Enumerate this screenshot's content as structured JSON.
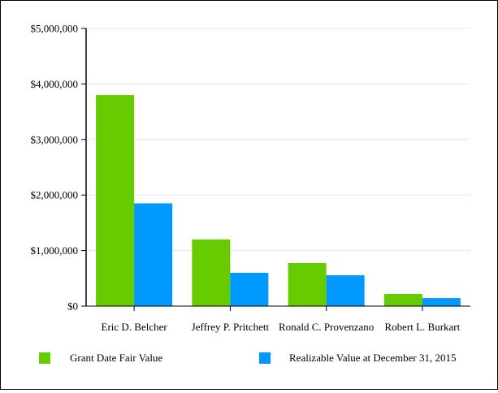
{
  "chart_data": {
    "type": "bar",
    "categories": [
      "Eric D. Belcher",
      "Jeffrey P. Pritchett",
      "Ronald C. Provenzano",
      "Robert L. Burkart"
    ],
    "series": [
      {
        "name": "Grant Date Fair Value",
        "color": "#66cc00",
        "values": [
          3800000,
          1200000,
          775000,
          220000
        ]
      },
      {
        "name": "Realizable Value at December 31, 2015",
        "color": "#0099ff",
        "values": [
          1850000,
          600000,
          555000,
          145000
        ]
      }
    ],
    "yticks": [
      "$0",
      "$1,000,000",
      "$2,000,000",
      "$3,000,000",
      "$4,000,000",
      "$5,000,000"
    ],
    "ylim": [
      0,
      5000000
    ],
    "grid": true,
    "legend_position": "bottom"
  }
}
